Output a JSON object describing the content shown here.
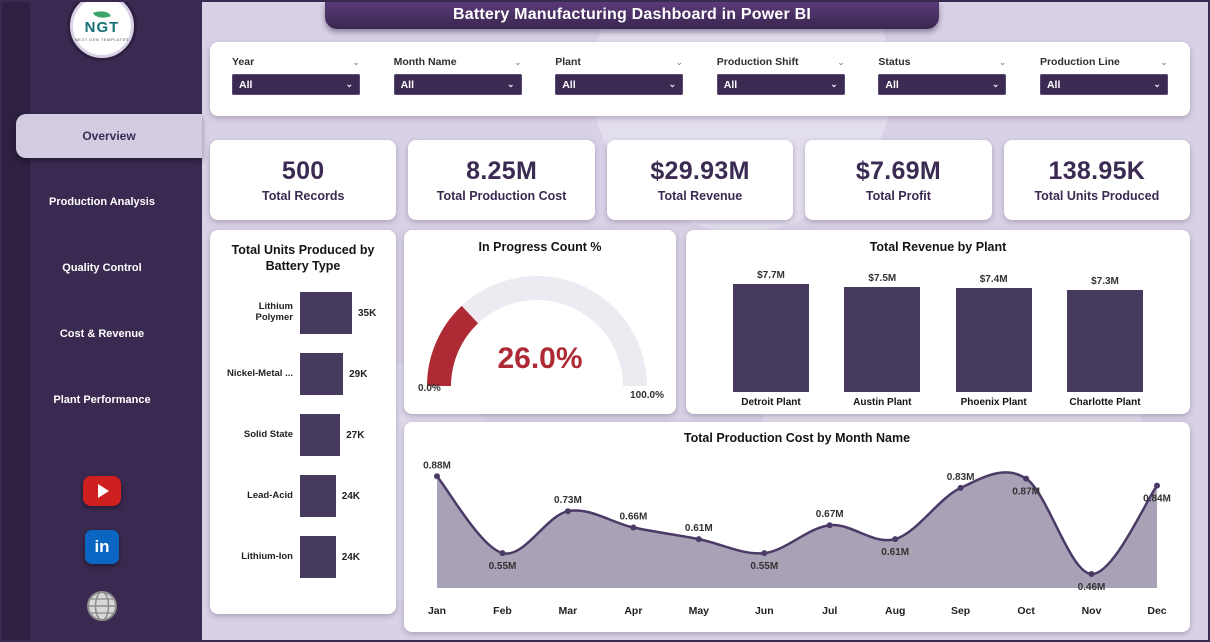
{
  "app": {
    "title": "Battery Manufacturing Dashboard in Power BI"
  },
  "colors": {
    "sidebar": "#3a2950",
    "background": "#d9d2e6",
    "banner": "#3f2b58",
    "card": "#ffffff",
    "primary_text": "#3b2a52",
    "bar_fill": "#463a5e",
    "gauge_fill": "#ae2b35",
    "gauge_track": "#edeaf2",
    "line_stroke": "#4b3a66",
    "area_fill": "#a49cb1",
    "youtube_red": "#cd201f",
    "linkedin_blue": "#0a66c2"
  },
  "sidebar": {
    "logo": {
      "text": "NGT",
      "tagline": "NEXT GEN TEMPLATES"
    },
    "items": [
      {
        "label": "Overview",
        "active": true
      },
      {
        "label": "Production Analysis",
        "active": false
      },
      {
        "label": "Quality Control",
        "active": false
      },
      {
        "label": "Cost & Revenue",
        "active": false
      },
      {
        "label": "Plant Performance",
        "active": false
      }
    ],
    "social": [
      {
        "name": "youtube"
      },
      {
        "name": "linkedin",
        "glyph": "in"
      },
      {
        "name": "website"
      }
    ]
  },
  "filters": [
    {
      "label": "Year",
      "value": "All"
    },
    {
      "label": "Month Name",
      "value": "All"
    },
    {
      "label": "Plant",
      "value": "All"
    },
    {
      "label": "Production Shift",
      "value": "All"
    },
    {
      "label": "Status",
      "value": "All"
    },
    {
      "label": "Production Line",
      "value": "All"
    }
  ],
  "kpis": [
    {
      "value": "500",
      "label": "Total Records"
    },
    {
      "value": "8.25M",
      "label": "Total Production Cost"
    },
    {
      "value": "$29.93M",
      "label": "Total Revenue"
    },
    {
      "value": "$7.69M",
      "label": "Total Profit"
    },
    {
      "value": "138.95K",
      "label": "Total Units Produced"
    }
  ],
  "chart_data": [
    {
      "id": "units",
      "type": "bar",
      "orientation": "horizontal",
      "title": "Total Units Produced by Battery Type",
      "categories": [
        "Lithium Polymer",
        "Nickel-Metal ...",
        "Solid State",
        "Lead-Acid",
        "Lithium-Ion"
      ],
      "values": [
        35000,
        29000,
        27000,
        24000,
        24000
      ],
      "labels": [
        "35K",
        "29K",
        "27K",
        "24K",
        "24K"
      ],
      "xlabel": "",
      "ylabel": ""
    },
    {
      "id": "gauge",
      "type": "gauge",
      "title": "In Progress Count %",
      "value_pct": 26.0,
      "label": "26.0%",
      "min_label": "0.0%",
      "max_label": "100.0%",
      "range": [
        0,
        100
      ]
    },
    {
      "id": "revenue",
      "type": "bar",
      "title": "Total Revenue by Plant",
      "categories": [
        "Detroit Plant",
        "Austin Plant",
        "Phoenix Plant",
        "Charlotte Plant"
      ],
      "values": [
        7.7,
        7.5,
        7.4,
        7.3
      ],
      "labels": [
        "$7.7M",
        "$7.5M",
        "$7.4M",
        "$7.3M"
      ],
      "xlabel": "",
      "ylabel": ""
    },
    {
      "id": "cost",
      "type": "area",
      "title": "Total Production Cost by Month Name",
      "categories": [
        "Jan",
        "Feb",
        "Mar",
        "Apr",
        "May",
        "Jun",
        "Jul",
        "Aug",
        "Sep",
        "Oct",
        "Nov",
        "Dec"
      ],
      "values": [
        0.88,
        0.55,
        0.73,
        0.66,
        0.61,
        0.55,
        0.67,
        0.61,
        0.83,
        0.87,
        0.46,
        0.84
      ],
      "labels": [
        "0.88M",
        "0.55M",
        "0.73M",
        "0.66M",
        "0.61M",
        "0.55M",
        "0.67M",
        "0.61M",
        "0.83M",
        "0.87M",
        "0.46M",
        "0.84M"
      ],
      "label_positions": [
        "above",
        "below",
        "above",
        "above",
        "above",
        "below",
        "above",
        "below",
        "above",
        "below",
        "below",
        "below"
      ],
      "xlabel": "",
      "ylabel": "",
      "ylim": [
        0.4,
        0.95
      ]
    }
  ]
}
